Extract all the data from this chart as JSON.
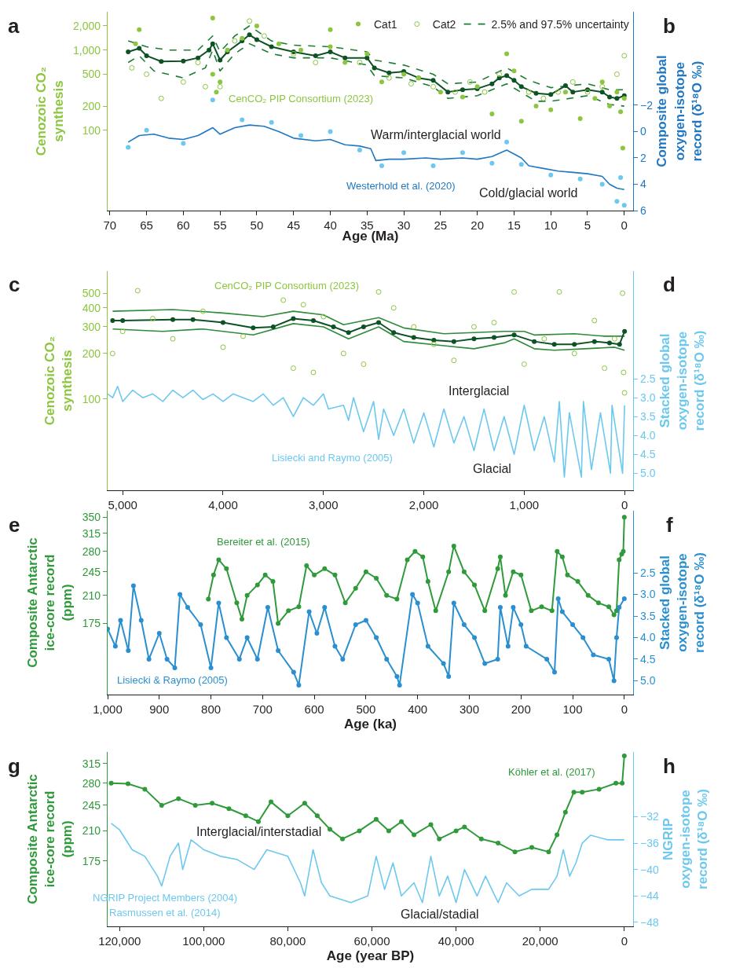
{
  "chart_data": [
    {
      "type": "line",
      "ylabel": "Cenozoic CO₂ synthesis",
      "y2label": "Composite global oxygen-isotope record (δ¹⁸O ‰)",
      "xlabel": "Age (Ma)",
      "log": "y",
      "legend": "top right",
      "xlim": [
        70.3,
        -1.2
      ],
      "xticks": [
        70,
        65,
        60,
        55,
        50,
        45,
        40,
        35,
        30,
        25,
        20,
        15,
        10,
        5,
        0
      ],
      "ylim": [
        10,
        3000
      ],
      "yticks": [
        100,
        200,
        500,
        {
          "value": 1000,
          "label": "1,000"
        },
        {
          "value": 2000,
          "label": "2,000"
        }
      ],
      "y2lim": [
        6,
        -9.1
      ],
      "y2ticks": [
        {
          "value": -2,
          "label": "−2"
        },
        0,
        2,
        4,
        6
      ],
      "annotations": [
        "CenCO₂ PIP Consortium (2023)",
        "Warm/interglacial world",
        "Westerhold et al. (2020)",
        "Cold/glacial world",
        "a",
        "b"
      ],
      "series": [
        {
          "name": "Cat1",
          "type": "scatter",
          "marker": "circle",
          "color": "#8cc63f",
          "x": [
            66,
            66.5,
            56,
            56,
            55.5,
            55,
            54,
            52,
            50,
            47,
            44,
            40,
            40,
            38,
            35,
            33,
            30,
            28,
            25,
            22,
            20,
            18,
            16,
            15,
            14,
            12,
            10,
            8,
            6,
            4,
            3,
            2,
            1,
            0.5,
            0.2,
            0
          ],
          "values": [
            1800,
            1200,
            2500,
            500,
            300,
            400,
            1000,
            1400,
            2000,
            1200,
            1000,
            1800,
            1100,
            700,
            900,
            400,
            500,
            450,
            300,
            260,
            350,
            160,
            900,
            550,
            130,
            200,
            180,
            300,
            140,
            250,
            400,
            200,
            300,
            170,
            60,
            250
          ]
        },
        {
          "name": "Cat2",
          "type": "scatter",
          "marker": "circle-open",
          "color": "#8cc63f",
          "x": [
            67,
            65,
            63,
            60,
            58,
            57,
            55,
            53,
            51,
            49,
            45,
            42,
            36,
            32,
            29,
            26,
            23,
            21,
            19,
            17,
            13,
            11,
            9,
            7,
            5,
            3,
            1,
            0
          ],
          "values": [
            600,
            500,
            250,
            400,
            700,
            350,
            350,
            1300,
            2300,
            1500,
            900,
            700,
            700,
            450,
            380,
            350,
            300,
            400,
            300,
            500,
            300,
            250,
            300,
            400,
            300,
            350,
            500,
            850
          ]
        },
        {
          "name": "2.5% and 97.5% uncertainty",
          "line_style": "dashed",
          "color": "#1e7b34",
          "x": [
            67.5,
            65,
            62,
            58,
            56,
            55,
            53,
            51,
            48,
            45,
            40,
            35,
            34,
            30,
            26,
            24,
            20,
            16,
            13,
            10,
            5,
            2,
            0
          ],
          "values": [
            1300,
            1100,
            1000,
            1000,
            1500,
            950,
            1500,
            2000,
            1300,
            1150,
            1100,
            950,
            750,
            650,
            500,
            380,
            400,
            600,
            420,
            340,
            380,
            320,
            320
          ]
        },
        {
          "line_style": "dashed",
          "color": "#1e7b34",
          "x": [
            67.5,
            66,
            64,
            60,
            57,
            56,
            55,
            53,
            51,
            48,
            45,
            40,
            35,
            34,
            30,
            26,
            24,
            20,
            16,
            12,
            10,
            5,
            2,
            0
          ],
          "values": [
            700,
            850,
            550,
            450,
            600,
            1000,
            550,
            900,
            1200,
            900,
            800,
            800,
            650,
            480,
            450,
            350,
            250,
            270,
            380,
            230,
            230,
            270,
            210,
            200
          ]
        },
        {
          "marker": "circle",
          "color": "#0d5224",
          "x": [
            67.5,
            66,
            65,
            63,
            60,
            58,
            56.5,
            56,
            55,
            54,
            52,
            51,
            50,
            48,
            45,
            42,
            40,
            38,
            35,
            34,
            32,
            30,
            28,
            26,
            24,
            22,
            20,
            18,
            17,
            16,
            15,
            14,
            12,
            10,
            8,
            7,
            5,
            3,
            2,
            1,
            0
          ],
          "values": [
            950,
            1050,
            850,
            720,
            730,
            800,
            1000,
            1200,
            750,
            950,
            1300,
            1550,
            1350,
            1100,
            950,
            850,
            950,
            800,
            800,
            600,
            520,
            540,
            450,
            420,
            300,
            320,
            330,
            380,
            450,
            480,
            420,
            350,
            290,
            280,
            360,
            300,
            320,
            300,
            260,
            250,
            270
          ]
        },
        {
          "type": "scatter",
          "marker": "circle",
          "axis": "y2",
          "color": "#6dc8ef",
          "x": [
            67.5,
            65,
            60,
            56,
            52,
            48,
            44,
            40,
            36,
            33,
            30,
            26,
            22,
            18,
            16,
            14,
            10,
            6,
            3,
            1,
            0.5,
            0
          ],
          "values": [
            1.2,
            -0.1,
            0.9,
            -2.4,
            -0.9,
            -0.7,
            0.3,
            0,
            1.4,
            2.6,
            1.6,
            2.6,
            1.6,
            2.4,
            0.8,
            2.5,
            3.3,
            3.6,
            4.0,
            5.3,
            3.5,
            5.6
          ]
        },
        {
          "axis": "y2",
          "color": "#1f78c1",
          "x": [
            67.5,
            66,
            64,
            62,
            60,
            58,
            56,
            55,
            53,
            51,
            49,
            47,
            45,
            42,
            40,
            38,
            36,
            34.5,
            33.8,
            32,
            30,
            27,
            25,
            22,
            20,
            18,
            16,
            14,
            13,
            11,
            9,
            7,
            5,
            3,
            2,
            1,
            0
          ],
          "values": [
            0.8,
            0.3,
            0.2,
            0.5,
            0.6,
            0.3,
            -0.3,
            0.2,
            -0.3,
            -0.5,
            -0.4,
            0,
            0.5,
            0.7,
            0.6,
            1.0,
            1.1,
            1.3,
            2.2,
            2.1,
            2.1,
            2.0,
            2.1,
            2.0,
            2.1,
            1.9,
            1.4,
            2.0,
            2.6,
            2.8,
            3.0,
            3.1,
            3.2,
            3.4,
            4.0,
            4.3,
            4.4
          ]
        }
      ]
    },
    {
      "type": "line",
      "ylabel": "Cenozoic CO₂ synthesis",
      "y2label": "Stacked global oxygen-isotope record (δ¹⁸O ‰)",
      "log": "y",
      "xlim": [
        5150,
        -85
      ],
      "xticks": [
        {
          "value": 5000,
          "label": "5,000"
        },
        {
          "value": 4000,
          "label": "4,000"
        },
        {
          "value": 3000,
          "label": "3,000"
        },
        {
          "value": 2000,
          "label": "2,000"
        },
        {
          "value": 1000,
          "label": "1,000"
        },
        0
      ],
      "ylim": [
        25,
        700
      ],
      "yticks": [
        100,
        200,
        300,
        400,
        500
      ],
      "y2lim": [
        5.45,
        -0.35
      ],
      "y2ticks": [
        2.5,
        {
          "value": 3,
          "label": "3.0"
        },
        3.5,
        {
          "value": 4,
          "label": "4.0"
        },
        4.5,
        {
          "value": 5,
          "label": "5.0"
        }
      ],
      "annotations": [
        "CenCO₂ PIP Consortium (2023)",
        "Interglacial",
        "Lisiecki and Raymo (2005)",
        "Glacial",
        "c",
        "d"
      ],
      "series": [
        {
          "type": "scatter",
          "marker": "circle-open",
          "color": "#8cc63f",
          "x": [
            5100,
            5000,
            4850,
            4700,
            4500,
            4200,
            4000,
            3800,
            3400,
            3300,
            3200,
            3100,
            3000,
            2800,
            2600,
            2450,
            2300,
            2100,
            1900,
            1700,
            1500,
            1300,
            1100,
            1000,
            800,
            650,
            500,
            300,
            200,
            100,
            20,
            10,
            0
          ],
          "values": [
            200,
            280,
            520,
            340,
            250,
            380,
            220,
            260,
            450,
            160,
            420,
            150,
            350,
            200,
            170,
            510,
            400,
            300,
            230,
            180,
            300,
            320,
            510,
            170,
            250,
            510,
            200,
            330,
            160,
            250,
            500,
            150,
            110
          ]
        },
        {
          "color": "#2e8b3a",
          "x": [
            5100,
            4500,
            4000,
            3600,
            3300,
            3000,
            2800,
            2450,
            2200,
            1800,
            1200,
            1000,
            900,
            500,
            200,
            0
          ],
          "values": [
            380,
            390,
            370,
            350,
            380,
            360,
            310,
            345,
            295,
            270,
            280,
            280,
            265,
            270,
            260,
            260
          ]
        },
        {
          "color": "#2e8b3a",
          "x": [
            5100,
            4600,
            4200,
            3700,
            3300,
            3000,
            2750,
            2450,
            2200,
            1800,
            1500,
            1200,
            1100,
            900,
            700,
            400,
            100,
            0
          ],
          "values": [
            290,
            280,
            290,
            265,
            315,
            300,
            250,
            300,
            240,
            225,
            215,
            235,
            250,
            215,
            210,
            215,
            220,
            210
          ]
        },
        {
          "marker": "circle",
          "color": "#0d5224",
          "x": [
            5100,
            5000,
            4500,
            4300,
            4000,
            3700,
            3500,
            3300,
            3100,
            2900,
            2750,
            2600,
            2450,
            2300,
            2100,
            1900,
            1700,
            1500,
            1300,
            1100,
            900,
            700,
            500,
            300,
            150,
            50,
            0
          ],
          "values": [
            330,
            330,
            335,
            335,
            320,
            295,
            300,
            340,
            330,
            300,
            275,
            300,
            320,
            275,
            255,
            245,
            240,
            250,
            255,
            265,
            240,
            230,
            230,
            240,
            235,
            230,
            280
          ]
        },
        {
          "axis": "y2",
          "color": "#6dc8ef",
          "x": [
            5150,
            5100,
            5050,
            5000,
            4900,
            4800,
            4700,
            4600,
            4500,
            4400,
            4300,
            4200,
            4100,
            4000,
            3900,
            3800,
            3700,
            3600,
            3500,
            3400,
            3300,
            3200,
            3100,
            3000,
            2950,
            2800,
            2750,
            2700,
            2600,
            2500,
            2450,
            2400,
            2300,
            2200,
            2100,
            2000,
            1900,
            1800,
            1700,
            1600,
            1500,
            1400,
            1300,
            1200,
            1100,
            1000,
            900,
            800,
            700,
            650,
            600,
            550,
            430,
            410,
            330,
            240,
            140,
            125,
            20,
            0
          ],
          "values": [
            2.9,
            3.0,
            2.7,
            3.1,
            2.8,
            3.0,
            2.9,
            3.1,
            2.8,
            3.0,
            2.8,
            3.05,
            2.9,
            3.1,
            2.9,
            3.0,
            3.1,
            2.9,
            3.2,
            3.0,
            3.5,
            3.0,
            3.2,
            2.9,
            3.3,
            3.2,
            3.6,
            3.0,
            3.9,
            3.1,
            4.1,
            3.3,
            4.0,
            3.3,
            4.2,
            3.4,
            4.3,
            3.3,
            4.2,
            3.5,
            4.4,
            3.3,
            4.4,
            3.5,
            4.5,
            3.2,
            4.4,
            3.5,
            4.7,
            3.1,
            5.1,
            3.4,
            5.1,
            3.1,
            4.9,
            3.4,
            5.0,
            3.2,
            5.0,
            3.2
          ]
        }
      ]
    },
    {
      "type": "line",
      "ylabel": "Composite Antarctic ice-core record (ppm)",
      "y2label": "Stacked global oxygen-isotope record (δ¹⁸O ‰)",
      "xlabel": "Age (ka)",
      "log": "y",
      "marker": "circle",
      "xlim": [
        1000,
        -17
      ],
      "xticks": [
        {
          "value": 1000,
          "label": "1,000"
        },
        900,
        800,
        700,
        600,
        500,
        400,
        300,
        200,
        100,
        0
      ],
      "ylim": [
        110,
        365
      ],
      "yticks": [
        175,
        210,
        245,
        280,
        315,
        350
      ],
      "y2lim": [
        5.32,
        1.06
      ],
      "y2ticks": [
        2.5,
        {
          "value": 3,
          "label": "3.0"
        },
        3.5,
        {
          "value": 4,
          "label": "4.0"
        },
        4.5,
        {
          "value": 5,
          "label": "5.0"
        }
      ],
      "annotations": [
        "Bereiter et al. (2015)",
        "Lisiecki & Raymo (2005)",
        "e",
        "f"
      ],
      "series": [
        {
          "color": "#2e9a3a",
          "x": [
            805,
            795,
            785,
            770,
            750,
            740,
            730,
            710,
            695,
            680,
            670,
            650,
            630,
            615,
            600,
            580,
            560,
            540,
            520,
            500,
            480,
            460,
            440,
            420,
            405,
            390,
            380,
            365,
            340,
            330,
            310,
            290,
            270,
            245,
            240,
            230,
            215,
            200,
            180,
            160,
            140,
            130,
            120,
            110,
            90,
            70,
            50,
            30,
            20,
            15,
            10,
            5,
            2,
            0
          ],
          "values": [
            205,
            240,
            265,
            250,
            200,
            180,
            210,
            225,
            240,
            230,
            175,
            190,
            195,
            255,
            240,
            250,
            240,
            200,
            220,
            245,
            235,
            210,
            205,
            265,
            280,
            270,
            230,
            190,
            245,
            290,
            245,
            225,
            190,
            250,
            270,
            210,
            245,
            240,
            190,
            195,
            190,
            280,
            270,
            240,
            230,
            210,
            200,
            195,
            185,
            190,
            265,
            275,
            280,
            350
          ]
        },
        {
          "axis": "y2",
          "color": "#2a8fd0",
          "x": [
            1000,
            985,
            975,
            960,
            950,
            935,
            920,
            900,
            885,
            870,
            860,
            845,
            820,
            800,
            785,
            770,
            745,
            730,
            710,
            690,
            670,
            640,
            630,
            610,
            595,
            580,
            560,
            545,
            520,
            500,
            480,
            460,
            440,
            435,
            410,
            400,
            380,
            350,
            340,
            330,
            310,
            290,
            270,
            245,
            240,
            225,
            215,
            200,
            190,
            150,
            135,
            128,
            120,
            100,
            80,
            60,
            30,
            20,
            15,
            10,
            0
          ],
          "values": [
            3.8,
            4.2,
            3.6,
            4.3,
            2.8,
            3.6,
            4.5,
            3.9,
            4.5,
            4.7,
            3.0,
            3.3,
            3.7,
            4.7,
            3.2,
            4.0,
            4.5,
            4.0,
            4.5,
            3.3,
            4.3,
            4.8,
            5.1,
            3.4,
            3.9,
            3.3,
            4.2,
            4.5,
            3.7,
            3.6,
            4.0,
            4.5,
            4.9,
            5.1,
            3.0,
            3.2,
            4.2,
            4.6,
            4.9,
            3.2,
            3.7,
            4.0,
            4.6,
            4.5,
            3.3,
            4.2,
            3.3,
            3.7,
            4.2,
            4.5,
            4.8,
            3.1,
            3.4,
            3.7,
            4.0,
            4.4,
            4.5,
            5.0,
            4.0,
            3.3,
            3.1
          ]
        }
      ]
    },
    {
      "type": "line",
      "ylabel": "Composite Antarctic ice-core record (ppm)",
      "y2label": "NGRIP oxygen-isotope record (δ¹⁸O ‰)",
      "xlabel": "Age (year BP)",
      "log": "y",
      "xlim": [
        122850,
        -2090
      ],
      "xticks": [
        {
          "value": 120000,
          "label": "120,000"
        },
        {
          "value": 100000,
          "label": "100,000"
        },
        {
          "value": 80000,
          "label": "80,000"
        },
        {
          "value": 60000,
          "label": "60,000"
        },
        {
          "value": 40000,
          "label": "40,000"
        },
        {
          "value": 20000,
          "label": "20,000"
        },
        0
      ],
      "ylim": [
        118,
        338
      ],
      "yticks": [
        175,
        210,
        245,
        280,
        315
      ],
      "y2lim": [
        -48.6,
        -22.2
      ],
      "y2ticks": [
        {
          "value": -32,
          "label": "−32"
        },
        {
          "value": -36,
          "label": "−36"
        },
        {
          "value": -40,
          "label": "−40"
        },
        {
          "value": -44,
          "label": "−44"
        },
        {
          "value": -48,
          "label": "−48"
        }
      ],
      "annotations": [
        "Köhler et al. (2017)",
        "Interglacial/interstadial",
        "NGRIP Project Members (2004)",
        "Rasmussen et al. (2014)",
        "Glacial/stadial",
        "g",
        "h"
      ],
      "series": [
        {
          "color": "#2e9a3a",
          "marker": "circle",
          "x": [
            122000,
            118000,
            114000,
            110000,
            106000,
            102000,
            98000,
            94000,
            90000,
            87000,
            84000,
            80000,
            76000,
            73000,
            70000,
            67000,
            63000,
            59000,
            56000,
            53000,
            50000,
            46000,
            44000,
            40000,
            38000,
            34000,
            30000,
            26000,
            22000,
            18000,
            16000,
            14000,
            12000,
            10000,
            6000,
            2000,
            500,
            0
          ],
          "values": [
            280,
            279,
            270,
            245,
            255,
            245,
            248,
            240,
            230,
            222,
            250,
            230,
            248,
            230,
            212,
            200,
            210,
            225,
            210,
            222,
            205,
            218,
            200,
            210,
            215,
            200,
            195,
            185,
            190,
            185,
            205,
            235,
            265,
            265,
            270,
            280,
            280,
            330
          ]
        },
        {
          "axis": "y2",
          "color": "#6dc8ef",
          "x": [
            122000,
            120000,
            117000,
            114000,
            111000,
            110000,
            108000,
            106000,
            105000,
            103000,
            100000,
            96000,
            92000,
            88000,
            85000,
            80000,
            77000,
            76000,
            74000,
            72000,
            70000,
            65000,
            61000,
            59000,
            57000,
            55000,
            53000,
            50000,
            48000,
            46000,
            44000,
            42000,
            40000,
            38000,
            35000,
            33000,
            30000,
            28000,
            25000,
            22000,
            18000,
            16000,
            14500,
            13000,
            11500,
            10000,
            8000,
            4000,
            0
          ],
          "values": [
            -33,
            -34,
            -37,
            -38,
            -41,
            -42.5,
            -38,
            -36,
            -40,
            -35.5,
            -37,
            -38,
            -38.5,
            -40,
            -37,
            -38,
            -42,
            -44,
            -37,
            -42,
            -44,
            -45,
            -44,
            -38,
            -43,
            -39,
            -44,
            -42,
            -45,
            -38,
            -44,
            -41,
            -45,
            -40,
            -44,
            -41,
            -45,
            -42,
            -44,
            -43,
            -43,
            -41,
            -37,
            -41,
            -39,
            -36,
            -34.8,
            -35.5,
            -35.5
          ]
        }
      ]
    }
  ]
}
